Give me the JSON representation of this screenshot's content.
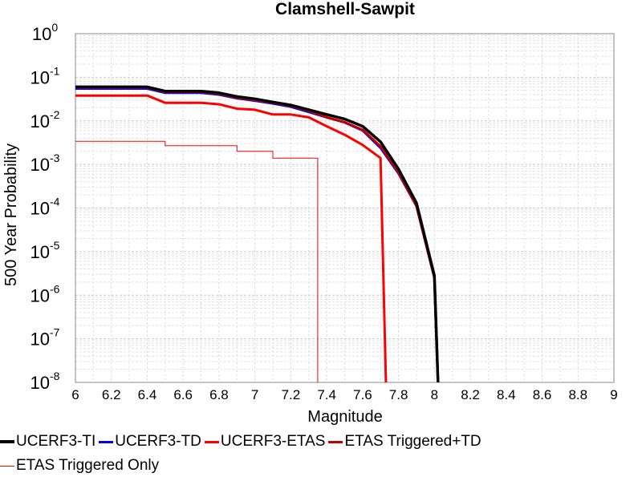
{
  "chart_data": {
    "type": "line",
    "title": "Clamshell-Sawpit",
    "xlabel": "Magnitude",
    "ylabel": "500 Year Probability",
    "xlim": [
      6,
      9
    ],
    "ylim": [
      1e-08,
      1
    ],
    "yscale": "log",
    "grid": true,
    "legend_position": "bottom",
    "x_ticks": [
      "6",
      "6.2",
      "6.4",
      "6.6",
      "6.8",
      "7",
      "7.2",
      "7.4",
      "7.6",
      "7.8",
      "8",
      "8.2",
      "8.4",
      "8.6",
      "8.8",
      "9"
    ],
    "y_ticks": [
      {
        "value": 1,
        "base": "10",
        "exp": "0"
      },
      {
        "value": 0.1,
        "base": "10",
        "exp": "-1"
      },
      {
        "value": 0.01,
        "base": "10",
        "exp": "-2"
      },
      {
        "value": 0.001,
        "base": "10",
        "exp": "-3"
      },
      {
        "value": 0.0001,
        "base": "10",
        "exp": "-4"
      },
      {
        "value": 1e-05,
        "base": "10",
        "exp": "-5"
      },
      {
        "value": 1e-06,
        "base": "10",
        "exp": "-6"
      },
      {
        "value": 1e-07,
        "base": "10",
        "exp": "-7"
      },
      {
        "value": 1e-08,
        "base": "10",
        "exp": "-8"
      }
    ],
    "series": [
      {
        "name": "UCERF3-TI",
        "color": "#000000",
        "width": 3.5,
        "step": false,
        "x": [
          6.0,
          6.4,
          6.5,
          6.7,
          6.8,
          6.9,
          7.0,
          7.1,
          7.2,
          7.3,
          7.4,
          7.5,
          7.6,
          7.7,
          7.8,
          7.9,
          8.0,
          8.02
        ],
        "y": [
          0.06,
          0.06,
          0.048,
          0.048,
          0.044,
          0.036,
          0.032,
          0.027,
          0.023,
          0.018,
          0.014,
          0.011,
          0.0075,
          0.0033,
          0.00078,
          0.00013,
          2.8e-06,
          1e-08
        ]
      },
      {
        "name": "UCERF3-TD",
        "color": "#0000ee",
        "width": 3,
        "step": false,
        "x": [
          6.0,
          6.4,
          6.5,
          6.7,
          6.8,
          6.9,
          7.0,
          7.1,
          7.2,
          7.3,
          7.4,
          7.5,
          7.6,
          7.7,
          7.8,
          7.9,
          8.0,
          8.02
        ],
        "y": [
          0.055,
          0.055,
          0.044,
          0.044,
          0.04,
          0.033,
          0.029,
          0.025,
          0.021,
          0.016,
          0.012,
          0.0092,
          0.006,
          0.0024,
          0.00062,
          0.00011,
          2.5e-06,
          1e-08
        ]
      },
      {
        "name": "UCERF3-ETAS",
        "color": "#ff0000",
        "width": 3,
        "step": false,
        "x": [
          6.0,
          6.4,
          6.5,
          6.7,
          6.8,
          6.9,
          7.0,
          7.1,
          7.2,
          7.3,
          7.4,
          7.5,
          7.6,
          7.7,
          7.73
        ],
        "y": [
          0.038,
          0.038,
          0.026,
          0.026,
          0.024,
          0.019,
          0.018,
          0.014,
          0.014,
          0.012,
          0.0075,
          0.0048,
          0.0028,
          0.0014,
          1e-08
        ]
      },
      {
        "name": "ETAS Triggered+TD",
        "color": "#c00000",
        "width": 3,
        "step": false,
        "x": [
          6.0,
          6.4,
          6.5,
          6.7,
          6.8,
          6.9,
          7.0,
          7.1,
          7.2,
          7.3,
          7.4,
          7.5,
          7.6,
          7.7,
          7.8,
          7.9,
          8.0,
          8.02
        ],
        "y": [
          0.058,
          0.058,
          0.046,
          0.046,
          0.042,
          0.034,
          0.03,
          0.026,
          0.022,
          0.017,
          0.012,
          0.0093,
          0.0062,
          0.0026,
          0.00065,
          0.00011,
          2.5e-06,
          1e-08
        ]
      },
      {
        "name": "ETAS Triggered Only",
        "color": "#ff0000",
        "width": 1,
        "step": true,
        "x": [
          6.0,
          6.4,
          6.5,
          6.7,
          6.8,
          6.9,
          7.0,
          7.1,
          7.2,
          7.3,
          7.35
        ],
        "y": [
          0.0034,
          0.0034,
          0.0027,
          0.0027,
          0.0027,
          0.002,
          0.002,
          0.0014,
          0.0014,
          0.0014,
          1e-08
        ]
      }
    ]
  }
}
